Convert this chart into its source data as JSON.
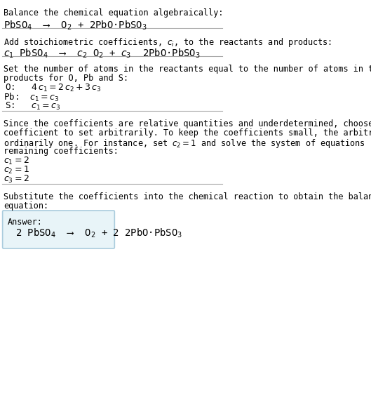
{
  "background_color": "#ffffff",
  "text_color": "#000000",
  "section1_title": "Balance the chemical equation algebraically:",
  "section1_line1": "PbSO$_4$  ⟶  O$_2$ + 2PbO·PbSO$_3$",
  "section2_title": "Add stoichiometric coefficients, $c_i$, to the reactants and products:",
  "section2_line1": "$c_1$ PbSO$_4$  ⟶  $c_2$ O$_2$ + $c_3$  2PbO·PbSO$_3$",
  "section3_title": "Set the number of atoms in the reactants equal to the number of atoms in the\nproducts for O, Pb and S:",
  "section3_O": "O:   $4\\,c_1 = 2\\,c_2 + 3\\,c_3$",
  "section3_Pb": "Pb:  $c_1 = c_3$",
  "section3_S": "S:   $c_1 = c_3$",
  "section4_intro": "Since the coefficients are relative quantities and underdetermined, choose a\ncoefficient to set arbitrarily. To keep the coefficients small, the arbitrary value is\nordinarily one. For instance, set $c_2 = 1$ and solve the system of equations for the\nremaining coefficients:",
  "section4_c1": "$c_1 = 2$",
  "section4_c2": "$c_2 = 1$",
  "section4_c3": "$c_3 = 2$",
  "section5_title": "Substitute the coefficients into the chemical reaction to obtain the balanced\nequation:",
  "answer_label": "Answer:",
  "answer_eq": "2 PbSO$_4$  ⟶  O$_2$ + 2 2PbO·PbSO$_3$",
  "divider_color": "#aaaaaa",
  "answer_box_color": "#e8f4f8"
}
